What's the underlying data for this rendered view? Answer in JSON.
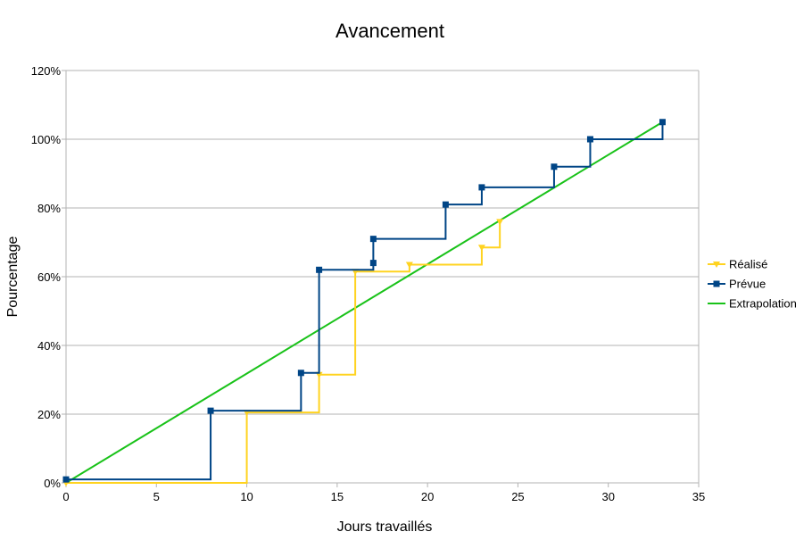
{
  "chart_data": {
    "type": "line",
    "title": "Avancement",
    "xlabel": "Jours travaillés",
    "ylabel": "Pourcentage",
    "xlim": [
      0,
      35
    ],
    "ylim": [
      0,
      120
    ],
    "x_ticks": [
      "0",
      "5",
      "10",
      "15",
      "20",
      "25",
      "30",
      "35"
    ],
    "y_ticks": [
      "0%",
      "20%",
      "40%",
      "60%",
      "80%",
      "100%",
      "120%"
    ],
    "grid": "horizontal",
    "legend_position": "right",
    "series": [
      {
        "name": "Réalisé",
        "color": "#ffd320",
        "marker": "triangle-down",
        "step": true,
        "points": [
          [
            0,
            0
          ],
          [
            10,
            20.5
          ],
          [
            14,
            31.5
          ],
          [
            16,
            61.5
          ],
          [
            19,
            63.5
          ],
          [
            23,
            68.5
          ],
          [
            24,
            76
          ]
        ]
      },
      {
        "name": "Prévue",
        "color": "#004586",
        "marker": "square",
        "step": true,
        "points": [
          [
            0,
            1
          ],
          [
            8,
            21
          ],
          [
            13,
            32
          ],
          [
            14,
            62
          ],
          [
            17,
            64
          ],
          [
            17,
            71
          ],
          [
            21,
            81
          ],
          [
            23,
            86
          ],
          [
            27,
            92
          ],
          [
            29,
            100
          ],
          [
            33,
            105
          ]
        ]
      },
      {
        "name": "Extrapolation",
        "color": "#19c219",
        "marker": "none",
        "step": false,
        "points": [
          [
            0,
            0
          ],
          [
            33,
            105
          ]
        ]
      }
    ]
  }
}
